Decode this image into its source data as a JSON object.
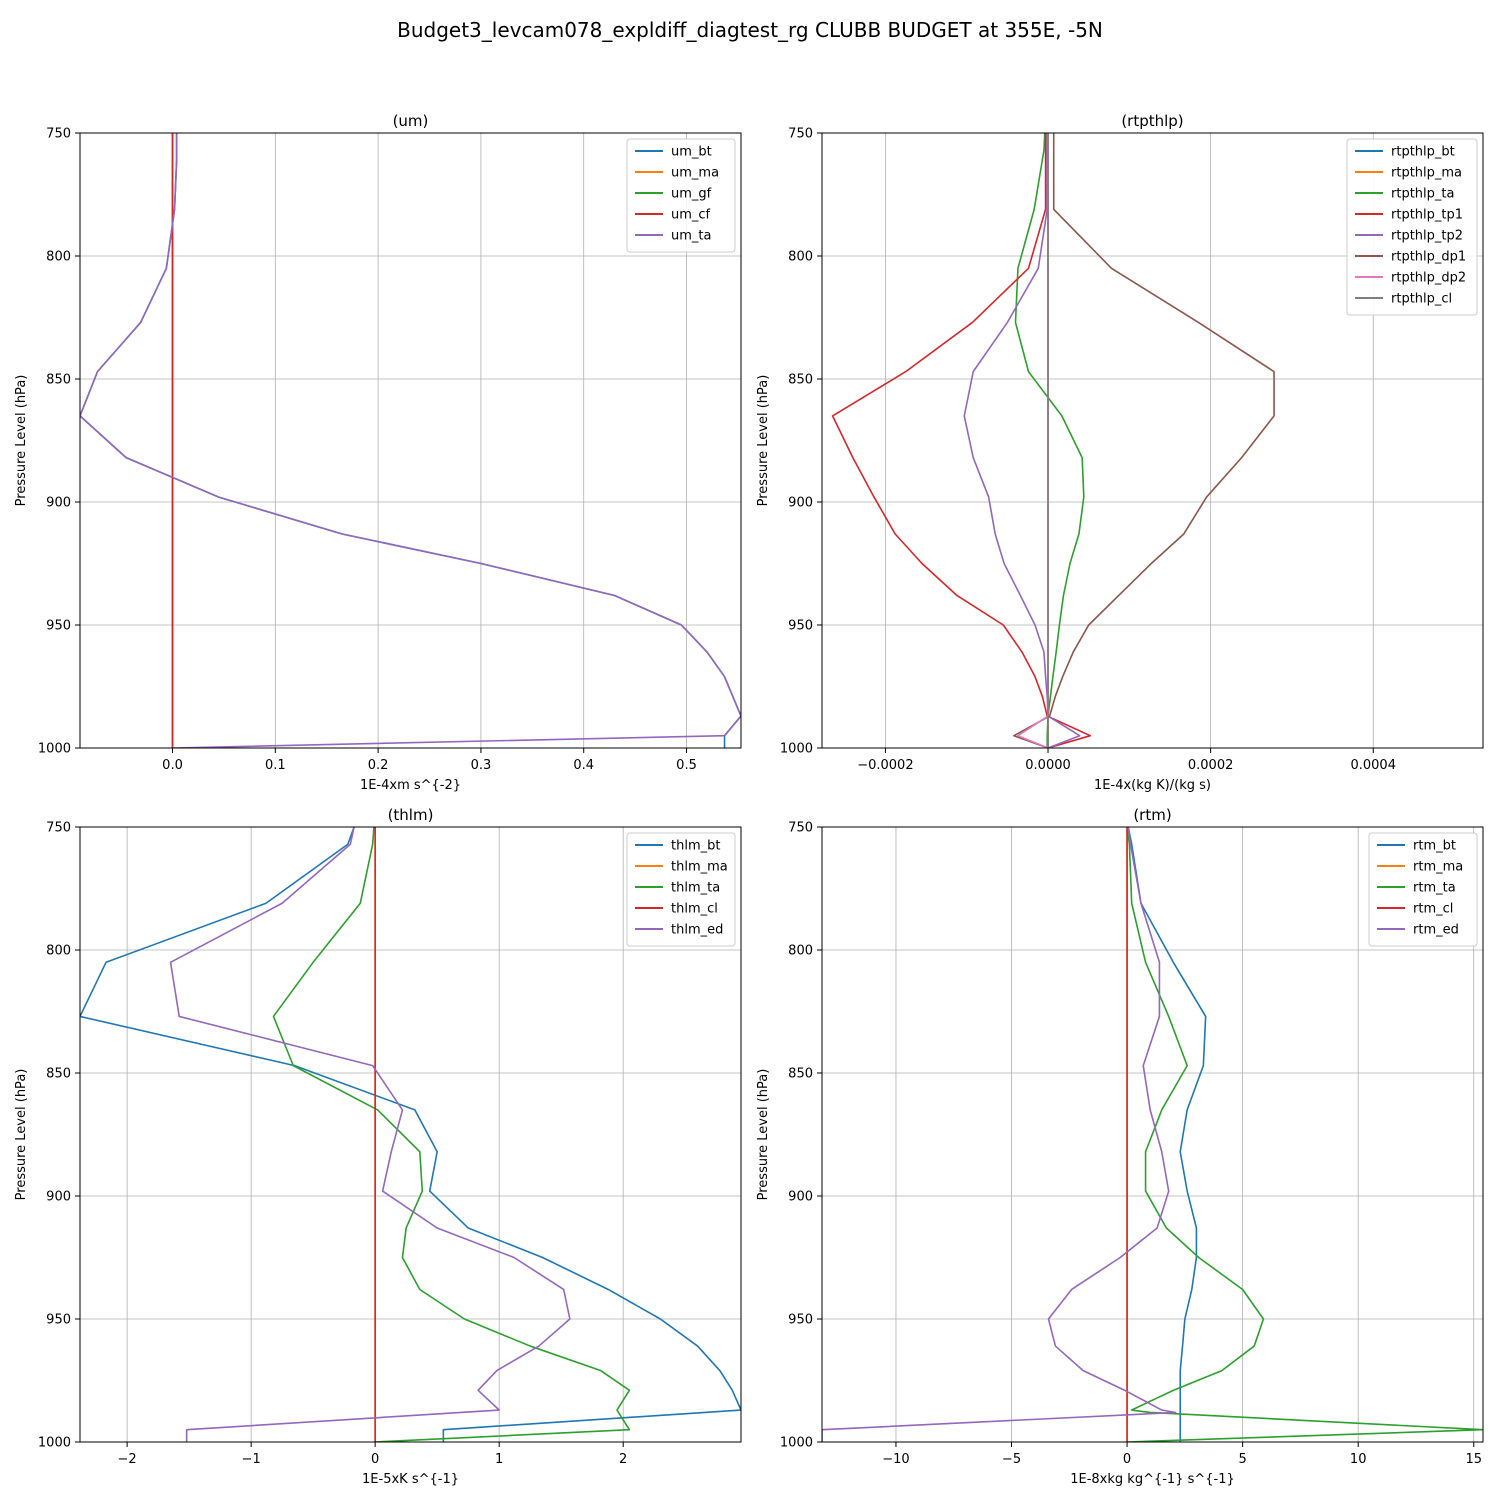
{
  "figure": {
    "title": "Budget3_levcam078_expldiff_diagtest_rg CLUBB BUDGET at 355E, -5N"
  },
  "colors": {
    "c0": "#1f77b4",
    "c1": "#ff7f0e",
    "c2": "#2ca02c",
    "c3": "#d62728",
    "c4": "#9467bd",
    "c5": "#8c564b",
    "c6": "#e377c2",
    "c7": "#7f7f7f",
    "grid": "#b0b0b0"
  },
  "chart_data": [
    {
      "type": "line",
      "title": "(um)",
      "xlabel": "1E-4xm s^{-2}",
      "ylabel": "Pressure Level (hPa)",
      "xlim": [
        -0.09,
        0.553
      ],
      "ylim": [
        1000,
        750
      ],
      "xticks": [
        0.0,
        0.1,
        0.2,
        0.3,
        0.4,
        0.5
      ],
      "xtick_labels": [
        "0.0",
        "0.1",
        "0.2",
        "0.3",
        "0.4",
        "0.5"
      ],
      "yticks": [
        750,
        800,
        850,
        900,
        950,
        1000
      ],
      "grid": true,
      "legend": "top-right",
      "levels": [
        750,
        761,
        781,
        805,
        827,
        847,
        865,
        882,
        898,
        913,
        925,
        938,
        950,
        961,
        971,
        987,
        995,
        1000
      ],
      "series": [
        {
          "name": "um_bt",
          "color": "#1f77b4",
          "values": [
            0.004,
            0.004,
            0.002,
            -0.006,
            -0.031,
            -0.073,
            -0.09,
            -0.045,
            0.045,
            0.165,
            0.3,
            0.43,
            0.495,
            0.52,
            0.537,
            0.553,
            0.537,
            0.537
          ]
        },
        {
          "name": "um_ma",
          "color": "#ff7f0e",
          "values": [
            0,
            0,
            0,
            0,
            0,
            0,
            0,
            0,
            0,
            0,
            0,
            0,
            0,
            0,
            0,
            0,
            0,
            0
          ]
        },
        {
          "name": "um_gf",
          "color": "#2ca02c",
          "values": [
            0,
            0,
            0,
            0,
            0,
            0,
            0,
            0,
            0,
            0,
            0,
            0,
            0,
            0,
            0,
            0,
            0,
            0
          ]
        },
        {
          "name": "um_cf",
          "color": "#d62728",
          "values": [
            0,
            0,
            0,
            0,
            0,
            0,
            0,
            0,
            0,
            0,
            0,
            0,
            0,
            0,
            0,
            0,
            0,
            0
          ]
        },
        {
          "name": "um_ta",
          "color": "#9467bd",
          "values": [
            0.004,
            0.004,
            0.002,
            -0.006,
            -0.031,
            -0.073,
            -0.09,
            -0.045,
            0.045,
            0.165,
            0.3,
            0.43,
            0.495,
            0.52,
            0.537,
            0.553,
            0.537,
            0.0
          ]
        }
      ]
    },
    {
      "type": "line",
      "title": "(rtpthlp)",
      "xlabel": "1E-4x(kg K)/(kg s)",
      "ylabel": "Pressure Level (hPa)",
      "xlim": [
        -0.000278,
        0.000535
      ],
      "ylim": [
        1000,
        750
      ],
      "xticks": [
        -0.0002,
        0.0,
        0.0002,
        0.0004
      ],
      "xtick_labels": [
        "−0.0002",
        "0.0000",
        "0.0002",
        "0.0004"
      ],
      "yticks": [
        750,
        800,
        850,
        900,
        950,
        1000
      ],
      "grid": true,
      "legend": "top-right",
      "levels": [
        750,
        757,
        781,
        805,
        827,
        847,
        865,
        882,
        898,
        913,
        925,
        938,
        950,
        961,
        971,
        979,
        987,
        995,
        1000
      ],
      "series": [
        {
          "name": "rtpthlp_bt",
          "color": "#1f77b4",
          "values": [
            0,
            0,
            0,
            0,
            0,
            0,
            0,
            0,
            0,
            0,
            0,
            0,
            0,
            0,
            0,
            0,
            0,
            0,
            0
          ]
        },
        {
          "name": "rtpthlp_ma",
          "color": "#ff7f0e",
          "values": [
            0,
            0,
            0,
            0,
            0,
            0,
            0,
            0,
            0,
            0,
            0,
            0,
            0,
            0,
            0,
            0,
            0,
            0,
            0
          ]
        },
        {
          "name": "rtpthlp_ta",
          "color": "#2ca02c",
          "values": [
            -4e-06,
            -5e-06,
            -1.7e-05,
            -3.7e-05,
            -4e-05,
            -2.4e-05,
            1.7e-05,
            4.2e-05,
            4.4e-05,
            3.8e-05,
            2.7e-05,
            1.9e-05,
            1.4e-05,
            1e-05,
            6e-06,
            3e-06,
            0.0,
            -1e-06,
            -1e-06
          ]
        },
        {
          "name": "rtpthlp_tp1",
          "color": "#d62728",
          "values": [
            -3e-06,
            -3e-06,
            -3e-06,
            -2.4e-05,
            -9.3e-05,
            -0.000175,
            -0.000265,
            -0.00024,
            -0.000214,
            -0.000188,
            -0.000155,
            -0.000112,
            -5.5e-05,
            -3.2e-05,
            -1.6e-05,
            -7e-06,
            -1e-06,
            5.2e-05,
            0.0
          ]
        },
        {
          "name": "rtpthlp_tp2",
          "color": "#9467bd",
          "values": [
            -1e-06,
            -1e-06,
            -1e-06,
            -1.2e-05,
            -5e-05,
            -9.2e-05,
            -0.000103,
            -9.2e-05,
            -7.3e-05,
            -6.5e-05,
            -5.4e-05,
            -3.4e-05,
            -1.6e-05,
            -5e-06,
            -3e-06,
            -1e-06,
            0.0,
            3.9e-05,
            0.0
          ]
        },
        {
          "name": "rtpthlp_dp1",
          "color": "#8c564b",
          "values": [
            7e-06,
            7e-06,
            7e-06,
            7.8e-05,
            0.000185,
            0.000278,
            0.000278,
            0.000238,
            0.000195,
            0.000167,
            0.000127,
            8.7e-05,
            5e-05,
            3.1e-05,
            1.8e-05,
            9e-06,
            2e-06,
            -4.2e-05,
            0.0
          ]
        },
        {
          "name": "rtpthlp_dp2",
          "color": "#e377c2",
          "values": [
            0.0,
            0.0,
            0.0,
            0.0,
            0.0,
            0.0,
            0.0,
            0.0,
            0.0,
            0.0,
            0.0,
            0.0,
            0.0,
            0.0,
            0.0,
            0.0,
            0.0,
            -3.7e-05,
            0.0
          ]
        },
        {
          "name": "rtpthlp_cl",
          "color": "#7f7f7f",
          "values": [
            0,
            0,
            0,
            0,
            0,
            0,
            0,
            0,
            0,
            0,
            0,
            0,
            0,
            0,
            0,
            0,
            0,
            0,
            0
          ]
        }
      ]
    },
    {
      "type": "line",
      "title": "(thlm)",
      "xlabel": "1E-5xK s^{-1}",
      "ylabel": "Pressure Level (hPa)",
      "xlim": [
        -2.38,
        2.95
      ],
      "ylim": [
        1000,
        750
      ],
      "xticks": [
        -2,
        -1,
        0,
        1,
        2
      ],
      "xtick_labels": [
        "−2",
        "−1",
        "0",
        "1",
        "2"
      ],
      "yticks": [
        750,
        800,
        850,
        900,
        950,
        1000
      ],
      "grid": true,
      "legend": "top-right",
      "levels": [
        750,
        757,
        781,
        805,
        827,
        847,
        865,
        882,
        898,
        913,
        925,
        938,
        950,
        961,
        971,
        979,
        987,
        995,
        1000
      ],
      "series": [
        {
          "name": "thlm_bt",
          "color": "#1f77b4",
          "values": [
            -0.17,
            -0.22,
            -0.88,
            -2.17,
            -2.38,
            -0.65,
            0.32,
            0.5,
            0.44,
            0.75,
            1.35,
            1.88,
            2.3,
            2.6,
            2.78,
            2.88,
            2.95,
            0.55,
            0.55
          ]
        },
        {
          "name": "thlm_ma",
          "color": "#ff7f0e",
          "values": [
            0,
            0,
            0,
            0,
            0,
            0,
            0,
            0,
            0,
            0,
            0,
            0,
            0,
            0,
            0,
            0,
            0,
            0,
            0
          ]
        },
        {
          "name": "thlm_ta",
          "color": "#2ca02c",
          "values": [
            -0.01,
            -0.02,
            -0.12,
            -0.5,
            -0.82,
            -0.66,
            0.02,
            0.36,
            0.38,
            0.25,
            0.22,
            0.36,
            0.72,
            1.25,
            1.82,
            2.05,
            1.95,
            2.05,
            0.0
          ]
        },
        {
          "name": "thlm_cl",
          "color": "#d62728",
          "values": [
            0,
            0,
            0,
            0,
            0,
            0,
            0,
            0,
            0,
            0,
            0,
            0,
            0,
            0,
            0,
            0,
            0,
            0,
            0
          ]
        },
        {
          "name": "thlm_ed",
          "color": "#9467bd",
          "values": [
            -0.17,
            -0.2,
            -0.75,
            -1.65,
            -1.58,
            -0.02,
            0.22,
            0.13,
            0.06,
            0.5,
            1.12,
            1.52,
            1.57,
            1.32,
            0.98,
            0.83,
            1.0,
            -1.52,
            -1.52
          ]
        }
      ]
    },
    {
      "type": "line",
      "title": "(rtm)",
      "xlabel": "1E-8xkg kg^{-1} s^{-1}",
      "ylabel": "Pressure Level (hPa)",
      "xlim": [
        -13.2,
        15.4
      ],
      "ylim": [
        1000,
        750
      ],
      "xticks": [
        -10,
        -5,
        0,
        5,
        10,
        15
      ],
      "xtick_labels": [
        "−10",
        "−5",
        "0",
        "5",
        "10",
        "15"
      ],
      "yticks": [
        750,
        800,
        850,
        900,
        950,
        1000
      ],
      "grid": true,
      "legend": "top-right",
      "levels": [
        750,
        757,
        781,
        805,
        827,
        847,
        865,
        882,
        898,
        913,
        925,
        938,
        950,
        961,
        971,
        979,
        987,
        988,
        995,
        1000
      ],
      "series": [
        {
          "name": "rtm_bt",
          "color": "#1f77b4",
          "values": [
            0.05,
            0.2,
            0.6,
            2.0,
            3.4,
            3.3,
            2.6,
            2.3,
            2.6,
            3.0,
            3.0,
            2.8,
            2.5,
            2.4,
            2.3,
            2.3,
            2.3,
            2.3,
            2.3,
            2.3
          ]
        },
        {
          "name": "rtm_ma",
          "color": "#ff7f0e",
          "values": [
            0,
            0,
            0,
            0,
            0,
            0,
            0,
            0,
            0,
            0,
            0,
            0,
            0,
            0,
            0,
            0,
            0,
            0,
            0,
            0
          ]
        },
        {
          "name": "rtm_ta",
          "color": "#2ca02c",
          "values": [
            0.0,
            0.1,
            0.2,
            0.8,
            1.8,
            2.6,
            1.5,
            0.8,
            0.8,
            1.7,
            3.1,
            5.0,
            5.9,
            5.5,
            4.1,
            2.0,
            0.2,
            1.0,
            15.4,
            0.0
          ]
        },
        {
          "name": "rtm_cl",
          "color": "#d62728",
          "values": [
            0,
            0,
            0,
            0,
            0,
            0,
            0,
            0,
            0,
            0,
            0,
            0,
            0,
            0,
            0,
            0,
            0,
            0,
            0,
            0
          ]
        },
        {
          "name": "rtm_ed",
          "color": "#9467bd",
          "values": [
            0.05,
            0.15,
            0.6,
            1.4,
            1.4,
            0.7,
            1.0,
            1.5,
            1.8,
            1.3,
            -0.3,
            -2.4,
            -3.4,
            -3.1,
            -1.9,
            -0.1,
            1.5,
            2.1,
            -13.2,
            -13.2
          ]
        }
      ]
    }
  ]
}
